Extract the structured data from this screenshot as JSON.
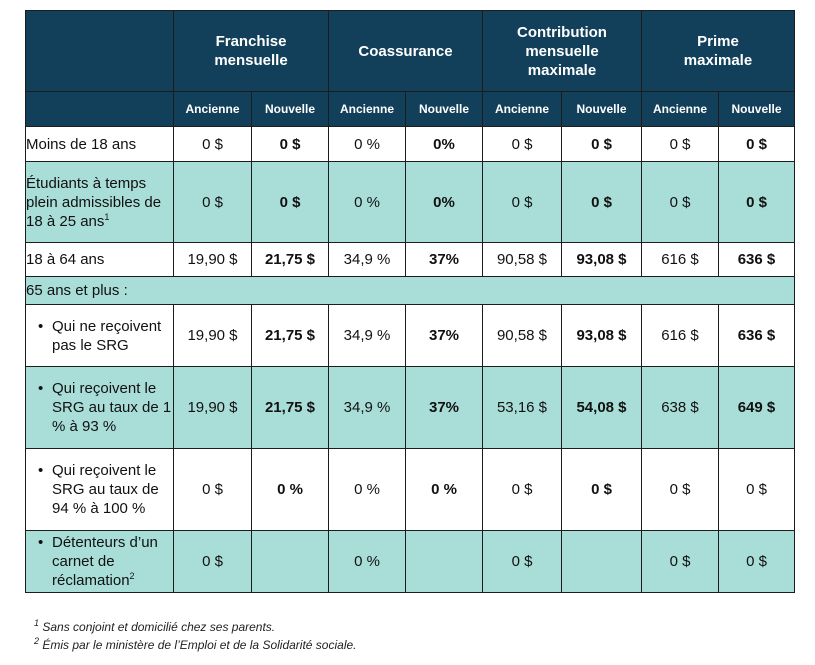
{
  "header": {
    "groups": [
      "Franchise mensuelle",
      "Coassurance",
      "Contribution mensuelle maximale",
      "Prime maximale"
    ],
    "sub": [
      "Ancienne",
      "Nouvelle",
      "Ancienne",
      "Nouvelle",
      "Ancienne",
      "Nouvelle",
      "Ancienne",
      "Nouvelle"
    ]
  },
  "rows": [
    {
      "label": "Moins de 18 ans",
      "label_sup": "",
      "bullet": false,
      "style": "white",
      "cells": [
        "0 $",
        "0 $",
        "0 %",
        "0%",
        "0 $",
        "0 $",
        "0 $",
        "0 $"
      ]
    },
    {
      "label": "Étudiants à temps plein admissibles de 18 à 25 ans",
      "label_sup": "1",
      "bullet": false,
      "style": "teal",
      "cells": [
        "0 $",
        "0 $",
        "0 %",
        "0%",
        "0 $",
        "0 $",
        "0 $",
        "0 $"
      ]
    },
    {
      "label": "18 à 64 ans",
      "label_sup": "",
      "bullet": false,
      "style": "white",
      "cells": [
        "19,90 $",
        "21,75 $",
        "34,9 %",
        "37%",
        "90,58 $",
        "93,08 $",
        "616 $",
        "636 $"
      ]
    },
    {
      "label": "65 ans et plus :",
      "label_sup": "",
      "bullet": false,
      "style": "teal",
      "span": true,
      "cells": []
    },
    {
      "label": "Qui ne reçoivent pas le SRG",
      "label_sup": "",
      "bullet": true,
      "style": "white",
      "cells": [
        "19,90 $",
        "21,75 $",
        "34,9 %",
        "37%",
        "90,58 $",
        "93,08 $",
        "616 $",
        "636 $"
      ]
    },
    {
      "label": "Qui reçoivent le SRG au taux de 1 % à 93 %",
      "label_sup": "",
      "bullet": true,
      "style": "teal",
      "cells": [
        "19,90 $",
        "21,75 $",
        "34,9 %",
        "37%",
        "53,16 $",
        "54,08 $",
        "638 $",
        "649 $"
      ]
    },
    {
      "label": "Qui reçoivent le SRG au taux de 94 % à 100 %",
      "label_sup": "",
      "bullet": true,
      "style": "white",
      "cells": [
        "0 $",
        "0 %",
        "0 %",
        "0 %",
        "0 $",
        "0 $",
        "0 $",
        "0 $"
      ]
    },
    {
      "label": "Détenteurs d’un carnet de réclamation",
      "label_sup": "2",
      "bullet": true,
      "style": "teal",
      "cells": [
        "0 $",
        "",
        "0 %",
        "",
        "0 $",
        "",
        "0 $",
        "0 $"
      ]
    }
  ],
  "footnotes": {
    "f1_mark": "1",
    "f1": " Sans conjoint et domicilié chez ses parents.",
    "f2_mark": "2",
    "f2": " Émis par le ministère de l’Emploi et de la Solidarité sociale."
  }
}
